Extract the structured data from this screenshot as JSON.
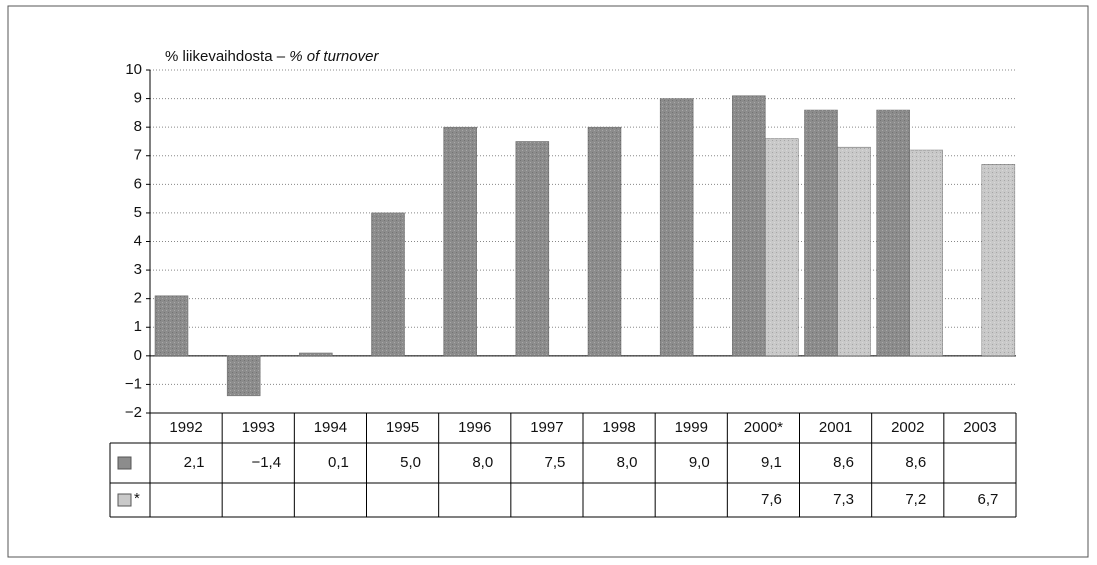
{
  "chart_data": {
    "type": "bar",
    "title": "% liikevaihdosta –",
    "title_en": "% of turnover",
    "categories": [
      "1992",
      "1993",
      "1994",
      "1995",
      "1996",
      "1997",
      "1998",
      "1999",
      "2000*",
      "2001",
      "2002",
      "2003"
    ],
    "series": [
      {
        "color": "#8c8c8c",
        "values": [
          2.1,
          -1.4,
          0.1,
          5.0,
          8.0,
          7.5,
          8.0,
          9.0,
          9.1,
          8.6,
          8.6,
          null
        ],
        "value_labels": [
          "2,1",
          "−1,4",
          "0,1",
          "5,0",
          "8,0",
          "7,5",
          "8,0",
          "9,0",
          "9,1",
          "8,6",
          "8,6",
          null
        ]
      },
      {
        "name": "*",
        "color": "#c9c9c9",
        "values": [
          null,
          null,
          null,
          null,
          null,
          null,
          null,
          null,
          7.6,
          7.3,
          7.2,
          6.7
        ],
        "value_labels": [
          null,
          null,
          null,
          null,
          null,
          null,
          null,
          null,
          "7,6",
          "7,3",
          "7,2",
          "6,7"
        ]
      }
    ],
    "ylim": [
      -2,
      10
    ],
    "yticks": [
      {
        "value": -2,
        "label": "−2"
      },
      {
        "value": -1,
        "label": "−1"
      },
      0,
      1,
      2,
      3,
      4,
      5,
      6,
      7,
      8,
      9,
      10
    ],
    "grid": true
  }
}
